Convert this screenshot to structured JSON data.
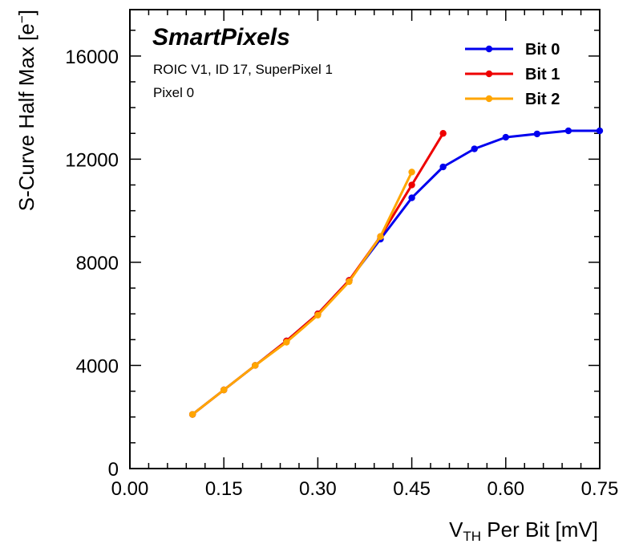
{
  "chart_data": {
    "type": "line",
    "title": "SmartPixels",
    "annotations": [
      "ROIC V1, ID 17, SuperPixel 1",
      "Pixel 0"
    ],
    "xlabel_main": "V",
    "xlabel_sub": "TH",
    "xlabel_rest": " Per Bit [mV]",
    "ylabel_main": "S-Curve Half Max [e",
    "ylabel_sup": "−",
    "ylabel_end": "]",
    "xlim": [
      0.0,
      0.75
    ],
    "ylim": [
      0,
      17800
    ],
    "xticks": [
      0.0,
      0.15,
      0.3,
      0.45,
      0.6,
      0.75
    ],
    "xtick_labels": [
      "0.00",
      "0.15",
      "0.30",
      "0.45",
      "0.60",
      "0.75"
    ],
    "yticks": [
      0,
      4000,
      8000,
      12000,
      16000
    ],
    "ytick_labels": [
      "0",
      "4000",
      "8000",
      "12000",
      "16000"
    ],
    "legend_position": "top-right",
    "series": [
      {
        "name": "Bit 0",
        "color": "#0000ee",
        "x": [
          0.1,
          0.15,
          0.2,
          0.25,
          0.3,
          0.35,
          0.4,
          0.45,
          0.5,
          0.55,
          0.6,
          0.65,
          0.7,
          0.75
        ],
        "y": [
          2100,
          3050,
          4000,
          4950,
          6000,
          7300,
          8900,
          10500,
          11700,
          12400,
          12850,
          12980,
          13100,
          13100
        ]
      },
      {
        "name": "Bit 1",
        "color": "#ee0000",
        "x": [
          0.1,
          0.15,
          0.2,
          0.25,
          0.3,
          0.35,
          0.4,
          0.45,
          0.5
        ],
        "y": [
          2100,
          3050,
          4000,
          4950,
          6000,
          7300,
          9000,
          11000,
          13000
        ]
      },
      {
        "name": "Bit 2",
        "color": "#ffa500",
        "x": [
          0.1,
          0.15,
          0.2,
          0.25,
          0.3,
          0.35,
          0.4,
          0.45
        ],
        "y": [
          2100,
          3050,
          4000,
          4900,
          5950,
          7250,
          9000,
          11500
        ]
      }
    ]
  }
}
